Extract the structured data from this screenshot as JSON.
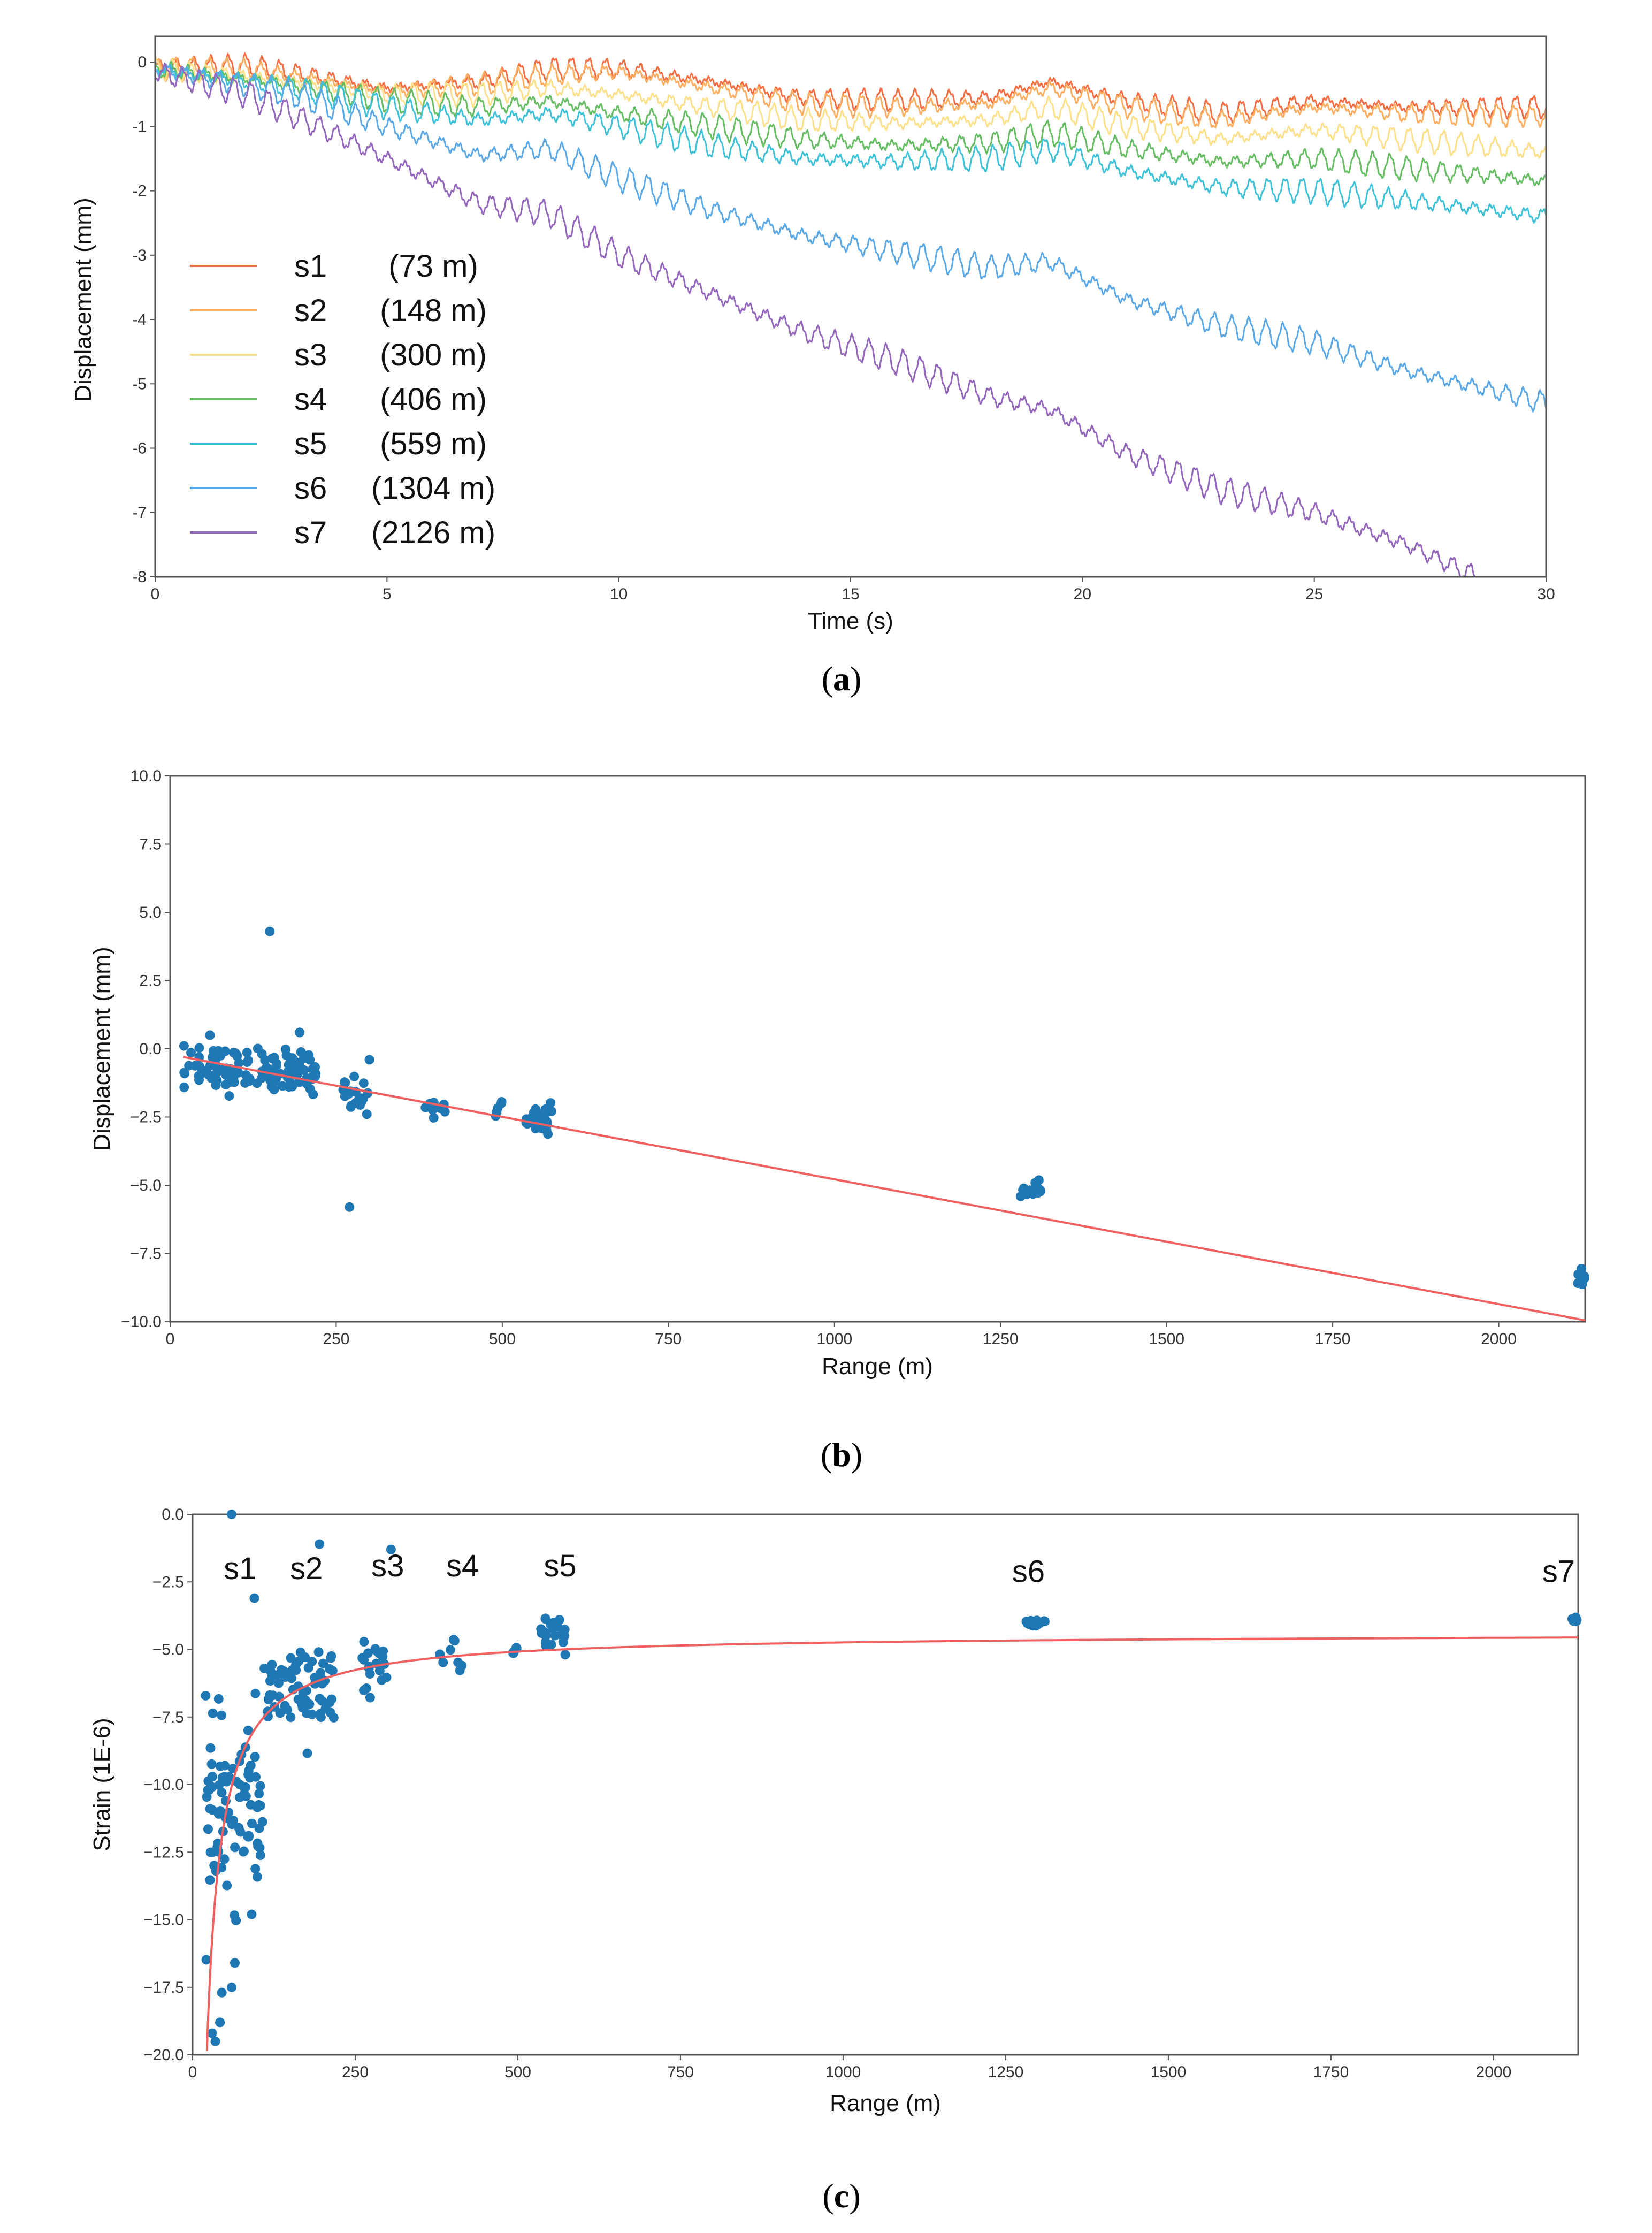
{
  "chart_data": [
    {
      "id": "a",
      "type": "line",
      "caption": "a",
      "xlabel": "Time (s)",
      "ylabel": "Displacement (mm)",
      "xlim": [
        0,
        30
      ],
      "ylim": [
        -8,
        0.4
      ],
      "xticks": [
        0,
        5,
        10,
        15,
        20,
        25,
        30
      ],
      "yticks": [
        0,
        -1,
        -2,
        -3,
        -4,
        -5,
        -6,
        -7,
        -8
      ],
      "legend_position": "left",
      "series": [
        {
          "name": "s1",
          "dist": "(73 m)",
          "color": "#f46d43",
          "trend": [
            [
              0,
              -0.1
            ],
            [
              2,
              -0.05
            ],
            [
              5,
              -0.4
            ],
            [
              7,
              -0.3
            ],
            [
              8.5,
              -0.1
            ],
            [
              10,
              -0.1
            ],
            [
              12,
              -0.3
            ],
            [
              14,
              -0.55
            ],
            [
              16,
              -0.6
            ],
            [
              18,
              -0.55
            ],
            [
              19.3,
              -0.3
            ],
            [
              21,
              -0.6
            ],
            [
              23,
              -0.8
            ],
            [
              25,
              -0.6
            ],
            [
              27,
              -0.7
            ],
            [
              30,
              -0.7
            ]
          ]
        },
        {
          "name": "s2",
          "dist": "(148 m)",
          "color": "#fdae61",
          "trend": [
            [
              0,
              -0.1
            ],
            [
              2,
              -0.1
            ],
            [
              5,
              -0.45
            ],
            [
              7,
              -0.35
            ],
            [
              8.5,
              -0.2
            ],
            [
              10,
              -0.15
            ],
            [
              12,
              -0.4
            ],
            [
              14,
              -0.65
            ],
            [
              16,
              -0.7
            ],
            [
              18,
              -0.65
            ],
            [
              19.3,
              -0.4
            ],
            [
              21,
              -0.7
            ],
            [
              23,
              -0.9
            ],
            [
              25,
              -0.7
            ],
            [
              27,
              -0.8
            ],
            [
              30,
              -0.85
            ]
          ]
        },
        {
          "name": "s3",
          "dist": "(300 m)",
          "color": "#fee08b",
          "trend": [
            [
              0,
              -0.1
            ],
            [
              3,
              -0.3
            ],
            [
              5,
              -0.5
            ],
            [
              7,
              -0.5
            ],
            [
              8.5,
              -0.4
            ],
            [
              10,
              -0.5
            ],
            [
              12,
              -0.7
            ],
            [
              14,
              -0.9
            ],
            [
              16,
              -0.95
            ],
            [
              18,
              -0.9
            ],
            [
              19.3,
              -0.7
            ],
            [
              21,
              -1.0
            ],
            [
              23,
              -1.2
            ],
            [
              25,
              -1.05
            ],
            [
              27,
              -1.2
            ],
            [
              30,
              -1.4
            ]
          ]
        },
        {
          "name": "s4",
          "dist": "(406 m)",
          "color": "#66bd63",
          "trend": [
            [
              0,
              -0.1
            ],
            [
              3,
              -0.35
            ],
            [
              5,
              -0.6
            ],
            [
              7,
              -0.7
            ],
            [
              8.5,
              -0.6
            ],
            [
              10,
              -0.8
            ],
            [
              12,
              -1.0
            ],
            [
              14,
              -1.2
            ],
            [
              16,
              -1.3
            ],
            [
              18,
              -1.25
            ],
            [
              19.3,
              -1.1
            ],
            [
              21,
              -1.35
            ],
            [
              23,
              -1.55
            ],
            [
              25,
              -1.5
            ],
            [
              27,
              -1.65
            ],
            [
              30,
              -1.85
            ]
          ]
        },
        {
          "name": "s5",
          "dist": "(559 m)",
          "color": "#3fc1d8",
          "trend": [
            [
              0,
              -0.1
            ],
            [
              3,
              -0.4
            ],
            [
              5,
              -0.7
            ],
            [
              7,
              -0.9
            ],
            [
              8.5,
              -0.8
            ],
            [
              10,
              -1.0
            ],
            [
              12,
              -1.3
            ],
            [
              14,
              -1.5
            ],
            [
              16,
              -1.55
            ],
            [
              18,
              -1.5
            ],
            [
              19.3,
              -1.35
            ],
            [
              21,
              -1.7
            ],
            [
              23,
              -1.95
            ],
            [
              25,
              -2.0
            ],
            [
              27,
              -2.15
            ],
            [
              30,
              -2.4
            ]
          ]
        },
        {
          "name": "s6",
          "dist": "(1304 m)",
          "color": "#5aa9e6",
          "trend": [
            [
              0,
              -0.1
            ],
            [
              3,
              -0.5
            ],
            [
              5,
              -1.0
            ],
            [
              7,
              -1.45
            ],
            [
              8.5,
              -1.35
            ],
            [
              10,
              -1.8
            ],
            [
              12,
              -2.3
            ],
            [
              14,
              -2.7
            ],
            [
              16,
              -2.95
            ],
            [
              18,
              -3.2
            ],
            [
              19.3,
              -3.1
            ],
            [
              21,
              -3.7
            ],
            [
              23,
              -4.1
            ],
            [
              25,
              -4.35
            ],
            [
              27,
              -4.8
            ],
            [
              30,
              -5.3
            ]
          ]
        },
        {
          "name": "s7",
          "dist": "(2126 m)",
          "color": "#9467bd",
          "trend": [
            [
              0,
              -0.15
            ],
            [
              2,
              -0.5
            ],
            [
              5,
              -1.5
            ],
            [
              7,
              -2.2
            ],
            [
              8.5,
              -2.35
            ],
            [
              10,
              -3.0
            ],
            [
              12,
              -3.6
            ],
            [
              14,
              -4.2
            ],
            [
              16,
              -4.65
            ],
            [
              18,
              -5.2
            ],
            [
              19.3,
              -5.4
            ],
            [
              21,
              -6.1
            ],
            [
              23,
              -6.65
            ],
            [
              25,
              -7.0
            ],
            [
              27,
              -7.5
            ],
            [
              28.5,
              -8.0
            ]
          ]
        }
      ]
    },
    {
      "id": "b",
      "type": "scatter",
      "caption": "b",
      "xlabel": "Range (m)",
      "ylabel": "Displacement (mm)",
      "xlim": [
        0,
        2130
      ],
      "ylim": [
        -10,
        10
      ],
      "xticks": [
        0,
        250,
        500,
        750,
        1000,
        1250,
        1500,
        1750,
        2000
      ],
      "xtick_labels": [
        "0",
        "250",
        "500",
        "750",
        "1000",
        "1250",
        "1500",
        "1750",
        "2000"
      ],
      "yticks": [
        10,
        7.5,
        5,
        2.5,
        0,
        -2.5,
        -5,
        -7.5,
        -10
      ],
      "ytick_labels": [
        "10.0",
        "7.5",
        "5.0",
        "2.5",
        "0.0",
        "−2.5",
        "−5.0",
        "−7.5",
        "−10.0"
      ],
      "fit_line": {
        "x": [
          20,
          2130
        ],
        "y": [
          -0.3,
          -9.95
        ],
        "color": "#f06060"
      },
      "clusters": [
        {
          "x_range": [
            20,
            220
          ],
          "y_center": -0.75,
          "y_spread": 0.9,
          "count": 120
        },
        {
          "x_range": [
            260,
            300
          ],
          "y_center": -1.7,
          "y_spread": 0.7,
          "count": 20
        },
        {
          "x_range": [
            380,
            415
          ],
          "y_center": -2.1,
          "y_spread": 0.5,
          "count": 8
        },
        {
          "x_range": [
            490,
            500
          ],
          "y_center": -2.4,
          "y_spread": 0.6,
          "count": 5
        },
        {
          "x_range": [
            535,
            575
          ],
          "y_center": -2.5,
          "y_spread": 0.6,
          "count": 30
        },
        {
          "x_range": [
            1280,
            1310
          ],
          "y_center": -5.2,
          "y_spread": 0.3,
          "count": 20
        },
        {
          "x_range": [
            2118,
            2130
          ],
          "y_center": -8.4,
          "y_spread": 0.4,
          "count": 10
        }
      ],
      "outliers": [
        [
          150,
          4.3
        ],
        [
          270,
          -5.8
        ],
        [
          195,
          0.6
        ],
        [
          60,
          0.5
        ],
        [
          300,
          -0.4
        ]
      ],
      "marker_color": "#1f77b4"
    },
    {
      "id": "c",
      "type": "scatter",
      "caption": "c",
      "xlabel": "Range (m)",
      "ylabel": "Strain (1E-6)",
      "xlim": [
        0,
        2130
      ],
      "ylim": [
        -20,
        0
      ],
      "xticks": [
        0,
        250,
        500,
        750,
        1000,
        1250,
        1500,
        1750,
        2000
      ],
      "xtick_labels": [
        "0",
        "250",
        "500",
        "750",
        "1000",
        "1250",
        "1500",
        "1750",
        "2000"
      ],
      "yticks": [
        0,
        -2.5,
        -5,
        -7.5,
        -10,
        -12.5,
        -15,
        -17.5,
        -20
      ],
      "ytick_labels": [
        "0.0",
        "−2.5",
        "−5.0",
        "−7.5",
        "−10.0",
        "−12.5",
        "−15.0",
        "−17.5",
        "−20.0"
      ],
      "fit_curve": {
        "model": "a + b/x",
        "a": -4.4,
        "b": -340,
        "x_start": 22,
        "x_end": 2130,
        "color": "#f06060"
      },
      "annotations": [
        {
          "label": "s1",
          "x": 73,
          "y": -2.4
        },
        {
          "label": "s2",
          "x": 175,
          "y": -2.4
        },
        {
          "label": "s3",
          "x": 300,
          "y": -2.3
        },
        {
          "label": "s4",
          "x": 415,
          "y": -2.3
        },
        {
          "label": "s5",
          "x": 565,
          "y": -2.3
        },
        {
          "label": "s6",
          "x": 1285,
          "y": -2.5
        },
        {
          "label": "s7",
          "x": 2100,
          "y": -2.5
        }
      ],
      "clusters": [
        {
          "x_range": [
            20,
            110
          ],
          "y_center": -11.0,
          "y_spread": 3.5,
          "count": 90
        },
        {
          "x_range": [
            110,
            220
          ],
          "y_center": -6.5,
          "y_spread": 1.8,
          "count": 70
        },
        {
          "x_range": [
            260,
            300
          ],
          "y_center": -5.7,
          "y_spread": 1.0,
          "count": 20
        },
        {
          "x_range": [
            380,
            415
          ],
          "y_center": -5.2,
          "y_spread": 0.6,
          "count": 8
        },
        {
          "x_range": [
            490,
            500
          ],
          "y_center": -5.0,
          "y_spread": 0.6,
          "count": 5
        },
        {
          "x_range": [
            535,
            575
          ],
          "y_center": -4.5,
          "y_spread": 0.6,
          "count": 30
        },
        {
          "x_range": [
            1280,
            1310
          ],
          "y_center": -4.0,
          "y_spread": 0.15,
          "count": 20
        },
        {
          "x_range": [
            2118,
            2130
          ],
          "y_center": -3.9,
          "y_spread": 0.1,
          "count": 8
        }
      ],
      "outliers": [
        [
          60,
          0
        ],
        [
          195,
          -1.1
        ],
        [
          305,
          -1.3
        ],
        [
          95,
          -3.1
        ],
        [
          35,
          -19.5
        ],
        [
          42,
          -18.8
        ],
        [
          60,
          -17.5
        ],
        [
          65,
          -16.6
        ],
        [
          45,
          -17.7
        ],
        [
          30,
          -19.2
        ]
      ],
      "marker_color": "#1f77b4"
    }
  ]
}
